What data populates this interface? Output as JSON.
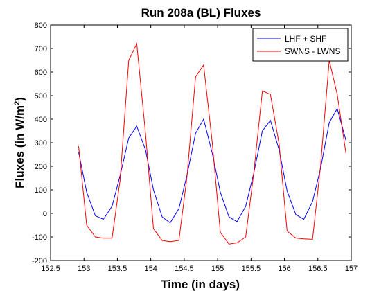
{
  "chart_data": {
    "type": "line",
    "title": "Run 208a (BL) Fluxes",
    "xlabel": "Time (in days)",
    "ylabel_main": "Fluxes (in W/m",
    "ylabel_sup": "2",
    "ylabel_tail": ")",
    "xlim": [
      152.5,
      157
    ],
    "ylim": [
      -200,
      800
    ],
    "xticks": [
      "152.5",
      "153",
      "153.5",
      "154",
      "154.5",
      "155",
      "155.5",
      "156",
      "156.5",
      "157"
    ],
    "xtick_values": [
      152.5,
      153,
      153.5,
      154,
      154.5,
      155,
      155.5,
      156,
      156.5,
      157
    ],
    "yticks": [
      "-200",
      "-100",
      "0",
      "100",
      "200",
      "300",
      "400",
      "500",
      "600",
      "700",
      "800"
    ],
    "ytick_values": [
      -200,
      -100,
      0,
      100,
      200,
      300,
      400,
      500,
      600,
      700,
      800
    ],
    "grid": false,
    "legend_position": "top-right",
    "series": [
      {
        "name": "LHF + SHF",
        "color": "#0000ff",
        "x": [
          152.92,
          153.04,
          153.17,
          153.29,
          153.42,
          153.54,
          153.67,
          153.79,
          153.92,
          154.04,
          154.17,
          154.29,
          154.42,
          154.54,
          154.67,
          154.79,
          154.92,
          155.04,
          155.17,
          155.29,
          155.42,
          155.54,
          155.67,
          155.79,
          155.92,
          156.04,
          156.17,
          156.29,
          156.42,
          156.54,
          156.67,
          156.79,
          156.92
        ],
        "y": [
          260,
          90,
          -10,
          -25,
          30,
          160,
          320,
          370,
          270,
          100,
          -15,
          -40,
          20,
          160,
          340,
          400,
          255,
          90,
          -15,
          -35,
          30,
          170,
          350,
          395,
          270,
          95,
          -5,
          -25,
          50,
          190,
          385,
          445,
          310
        ]
      },
      {
        "name": "SWNS - LWNS",
        "color": "#ff0000",
        "x": [
          152.92,
          153.04,
          153.17,
          153.29,
          153.42,
          153.54,
          153.67,
          153.79,
          153.92,
          154.04,
          154.17,
          154.29,
          154.42,
          154.54,
          154.67,
          154.79,
          154.92,
          155.04,
          155.17,
          155.29,
          155.42,
          155.54,
          155.67,
          155.79,
          155.92,
          156.04,
          156.17,
          156.29,
          156.42,
          156.54,
          156.67,
          156.79,
          156.92
        ],
        "y": [
          285,
          -50,
          -100,
          -105,
          -105,
          140,
          650,
          720,
          340,
          -65,
          -115,
          -120,
          -115,
          150,
          580,
          630,
          300,
          -80,
          -130,
          -125,
          -100,
          170,
          520,
          505,
          295,
          -75,
          -105,
          -108,
          -110,
          200,
          650,
          505,
          255
        ]
      }
    ]
  }
}
